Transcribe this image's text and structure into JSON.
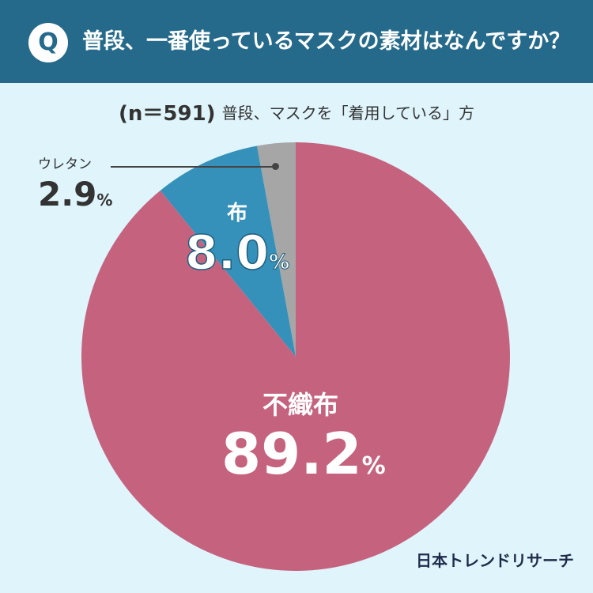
{
  "header": {
    "badge": "Q",
    "question": "普段、一番使っているマスクの素材はなんですか？"
  },
  "subtitle": {
    "n": "(n＝591)",
    "text": "普段、マスクを「着用している」方"
  },
  "chart_data": {
    "type": "pie",
    "unit": "%",
    "slices": [
      {
        "name": "不織布",
        "value": 89.2,
        "color": "#c5637f"
      },
      {
        "name": "布",
        "value": 8.0,
        "color": "#3591b9"
      },
      {
        "name": "ウレタン",
        "value": 2.9,
        "color": "#a6a6a6"
      }
    ],
    "labels": {
      "nonwoven": {
        "name": "不織布",
        "value": "89.2",
        "unit": "%"
      },
      "cloth": {
        "name": "布",
        "value": "8.0",
        "unit": "%"
      },
      "urethane": {
        "name": "ウレタン",
        "value": "2.9",
        "unit": "%"
      }
    }
  },
  "footer": {
    "brand": "日本トレンドリサーチ"
  }
}
